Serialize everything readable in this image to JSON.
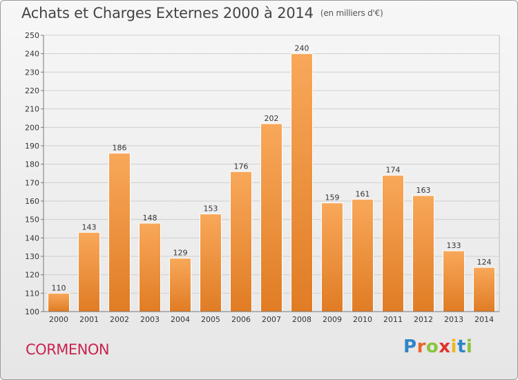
{
  "title": "Achats et Charges Externes 2000 à 2014",
  "unit": "(en milliers d'€)",
  "city": "CORMENON",
  "logo": {
    "letters": [
      "P",
      "r",
      "o",
      "x",
      "i",
      "t",
      "i"
    ],
    "colors": [
      "#2e86c9",
      "#e8662a",
      "#8cc43d",
      "#e0332f",
      "#f2b51b",
      "#2e86c9",
      "#8cc43d"
    ]
  },
  "colors": {
    "bar_light": "#f8a85a",
    "bar_dark": "#e07c24",
    "bar_stroke": "#ffffff",
    "city": "#c8234f"
  },
  "chart_data": {
    "type": "bar",
    "categories": [
      "2000",
      "2001",
      "2002",
      "2003",
      "2004",
      "2005",
      "2006",
      "2007",
      "2008",
      "2009",
      "2010",
      "2011",
      "2012",
      "2013",
      "2014"
    ],
    "values": [
      110,
      143,
      186,
      148,
      129,
      153,
      176,
      202,
      240,
      159,
      161,
      174,
      163,
      133,
      124
    ],
    "ylim": [
      100,
      250
    ],
    "yticks": [
      100,
      110,
      120,
      130,
      140,
      150,
      160,
      170,
      180,
      190,
      200,
      210,
      220,
      230,
      240,
      250
    ],
    "grid": "horizontal",
    "data_labels": true
  }
}
